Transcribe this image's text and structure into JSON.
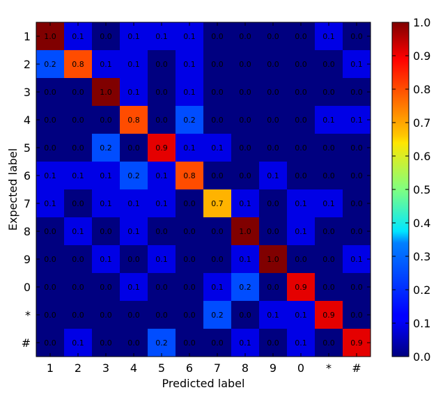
{
  "chart_data": {
    "type": "heatmap",
    "title": "",
    "xlabel": "Predicted label",
    "ylabel": "Expected label",
    "x_categories": [
      "1",
      "2",
      "3",
      "4",
      "5",
      "6",
      "7",
      "8",
      "9",
      "0",
      "*",
      "#"
    ],
    "y_categories": [
      "1",
      "2",
      "3",
      "4",
      "5",
      "6",
      "7",
      "8",
      "9",
      "0",
      "*",
      "#"
    ],
    "values": [
      [
        1.0,
        0.1,
        0.0,
        0.1,
        0.1,
        0.1,
        0.0,
        0.0,
        0.0,
        0.0,
        0.1,
        0.0
      ],
      [
        0.2,
        0.8,
        0.1,
        0.1,
        0.0,
        0.1,
        0.0,
        0.0,
        0.0,
        0.0,
        0.0,
        0.1
      ],
      [
        0.0,
        0.0,
        1.0,
        0.1,
        0.0,
        0.1,
        0.0,
        0.0,
        0.0,
        0.0,
        0.0,
        0.0
      ],
      [
        0.0,
        0.0,
        0.0,
        0.8,
        0.0,
        0.2,
        0.0,
        0.0,
        0.0,
        0.0,
        0.1,
        0.1
      ],
      [
        0.0,
        0.0,
        0.2,
        0.0,
        0.9,
        0.1,
        0.1,
        0.0,
        0.0,
        0.0,
        0.0,
        0.0
      ],
      [
        0.1,
        0.1,
        0.1,
        0.2,
        0.1,
        0.8,
        0.0,
        0.0,
        0.1,
        0.0,
        0.0,
        0.0
      ],
      [
        0.1,
        0.0,
        0.1,
        0.1,
        0.1,
        0.0,
        0.7,
        0.1,
        0.0,
        0.1,
        0.1,
        0.0
      ],
      [
        0.0,
        0.1,
        0.0,
        0.1,
        0.0,
        0.0,
        0.0,
        1.0,
        0.0,
        0.1,
        0.0,
        0.0
      ],
      [
        0.0,
        0.0,
        0.1,
        0.0,
        0.1,
        0.0,
        0.0,
        0.1,
        1.0,
        0.0,
        0.0,
        0.1
      ],
      [
        0.0,
        0.0,
        0.0,
        0.1,
        0.0,
        0.0,
        0.1,
        0.2,
        0.0,
        0.9,
        0.0,
        0.0
      ],
      [
        0.0,
        0.0,
        0.0,
        0.0,
        0.0,
        0.0,
        0.2,
        0.0,
        0.1,
        0.1,
        0.9,
        0.0
      ],
      [
        0.0,
        0.1,
        0.0,
        0.0,
        0.2,
        0.0,
        0.0,
        0.1,
        0.0,
        0.1,
        0.0,
        0.9
      ]
    ],
    "value_range": [
      0.0,
      1.0
    ],
    "colormap": "jet",
    "colorbar": {
      "ticks": [
        "0.0",
        "0.1",
        "0.2",
        "0.3",
        "0.4",
        "0.5",
        "0.6",
        "0.7",
        "0.8",
        "0.9",
        "1.0"
      ]
    },
    "grid": false
  }
}
